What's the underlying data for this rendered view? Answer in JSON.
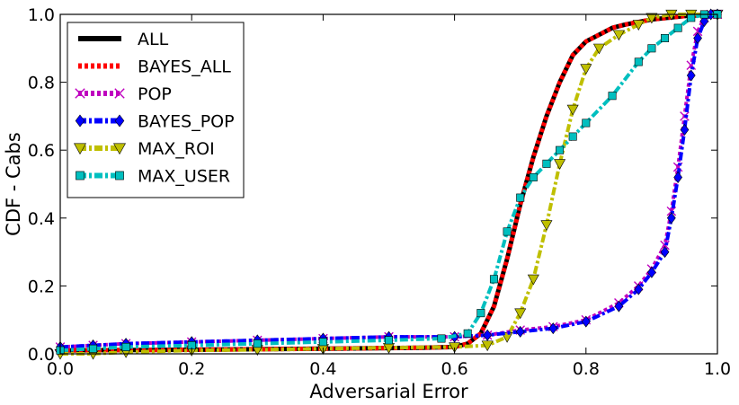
{
  "chart_data": {
    "type": "line",
    "xlabel": "Adversarial Error",
    "ylabel": "CDF - Cabs",
    "xlim": [
      0.0,
      1.0
    ],
    "ylim": [
      0.0,
      1.0
    ],
    "xticks": [
      "0.0",
      "0.2",
      "0.4",
      "0.6",
      "0.8",
      "1.0"
    ],
    "yticks": [
      "0.0",
      "0.2",
      "0.4",
      "0.6",
      "0.8",
      "1.0"
    ],
    "grid": false,
    "legend_position": "top-left",
    "series": [
      {
        "name": "ALL",
        "color": "#000000",
        "marker": "none",
        "style": "solid",
        "x": [
          0.0,
          0.2,
          0.4,
          0.55,
          0.6,
          0.62,
          0.64,
          0.66,
          0.68,
          0.7,
          0.72,
          0.74,
          0.76,
          0.78,
          0.8,
          0.82,
          0.84,
          0.86,
          0.9,
          0.95,
          1.0
        ],
        "y": [
          0.01,
          0.012,
          0.015,
          0.018,
          0.02,
          0.03,
          0.06,
          0.14,
          0.28,
          0.44,
          0.58,
          0.7,
          0.8,
          0.88,
          0.92,
          0.94,
          0.96,
          0.97,
          0.985,
          0.995,
          1.0
        ]
      },
      {
        "name": "BAYES_ALL",
        "color": "#ff0000",
        "marker": "none",
        "style": "dotted",
        "x": [
          0.0,
          0.2,
          0.4,
          0.55,
          0.6,
          0.62,
          0.64,
          0.66,
          0.68,
          0.7,
          0.72,
          0.74,
          0.76,
          0.78,
          0.8,
          0.82,
          0.84,
          0.86,
          0.9,
          0.95,
          1.0
        ],
        "y": [
          0.01,
          0.012,
          0.015,
          0.018,
          0.02,
          0.03,
          0.06,
          0.14,
          0.28,
          0.44,
          0.58,
          0.7,
          0.8,
          0.88,
          0.92,
          0.94,
          0.96,
          0.97,
          0.985,
          0.995,
          1.0
        ]
      },
      {
        "name": "POP",
        "color": "#bf00bf",
        "marker": "x",
        "style": "dotted",
        "x": [
          0.0,
          0.05,
          0.1,
          0.2,
          0.3,
          0.4,
          0.5,
          0.6,
          0.65,
          0.7,
          0.75,
          0.8,
          0.85,
          0.88,
          0.9,
          0.92,
          0.93,
          0.94,
          0.95,
          0.96,
          0.97,
          0.98,
          0.99,
          1.0
        ],
        "y": [
          0.02,
          0.025,
          0.03,
          0.035,
          0.04,
          0.045,
          0.05,
          0.05,
          0.055,
          0.07,
          0.08,
          0.1,
          0.15,
          0.2,
          0.25,
          0.32,
          0.42,
          0.55,
          0.7,
          0.85,
          0.95,
          0.99,
          1.0,
          1.0
        ]
      },
      {
        "name": "BAYES_POP",
        "color": "#0000ff",
        "marker": "diamond",
        "style": "dashdot",
        "x": [
          0.0,
          0.05,
          0.1,
          0.2,
          0.3,
          0.4,
          0.5,
          0.6,
          0.65,
          0.7,
          0.75,
          0.8,
          0.85,
          0.88,
          0.9,
          0.92,
          0.93,
          0.94,
          0.95,
          0.96,
          0.97,
          0.98,
          0.99,
          1.0
        ],
        "y": [
          0.02,
          0.025,
          0.03,
          0.035,
          0.04,
          0.045,
          0.05,
          0.05,
          0.055,
          0.065,
          0.075,
          0.095,
          0.14,
          0.19,
          0.24,
          0.3,
          0.4,
          0.52,
          0.66,
          0.82,
          0.93,
          0.98,
          1.0,
          1.0
        ]
      },
      {
        "name": "MAX_ROI",
        "color": "#bfbf00",
        "marker": "triangle-down",
        "style": "dashdot",
        "x": [
          0.0,
          0.05,
          0.1,
          0.2,
          0.3,
          0.4,
          0.5,
          0.6,
          0.65,
          0.68,
          0.7,
          0.72,
          0.74,
          0.76,
          0.78,
          0.8,
          0.82,
          0.85,
          0.88,
          0.9,
          0.93,
          0.96,
          1.0
        ],
        "y": [
          0.0,
          0.0,
          0.005,
          0.01,
          0.012,
          0.015,
          0.018,
          0.02,
          0.025,
          0.05,
          0.12,
          0.22,
          0.38,
          0.56,
          0.72,
          0.84,
          0.9,
          0.94,
          0.97,
          0.99,
          1.0,
          1.0,
          1.0
        ]
      },
      {
        "name": "MAX_USER",
        "color": "#00bfbf",
        "marker": "square",
        "style": "dashdot",
        "x": [
          0.0,
          0.05,
          0.1,
          0.2,
          0.3,
          0.4,
          0.5,
          0.58,
          0.62,
          0.64,
          0.66,
          0.68,
          0.7,
          0.72,
          0.74,
          0.76,
          0.78,
          0.8,
          0.84,
          0.88,
          0.9,
          0.92,
          0.94,
          0.96,
          0.98,
          1.0
        ],
        "y": [
          0.01,
          0.015,
          0.02,
          0.025,
          0.03,
          0.035,
          0.04,
          0.045,
          0.06,
          0.12,
          0.22,
          0.36,
          0.46,
          0.52,
          0.56,
          0.6,
          0.64,
          0.68,
          0.76,
          0.86,
          0.9,
          0.93,
          0.96,
          0.99,
          1.0,
          1.0
        ]
      }
    ]
  }
}
